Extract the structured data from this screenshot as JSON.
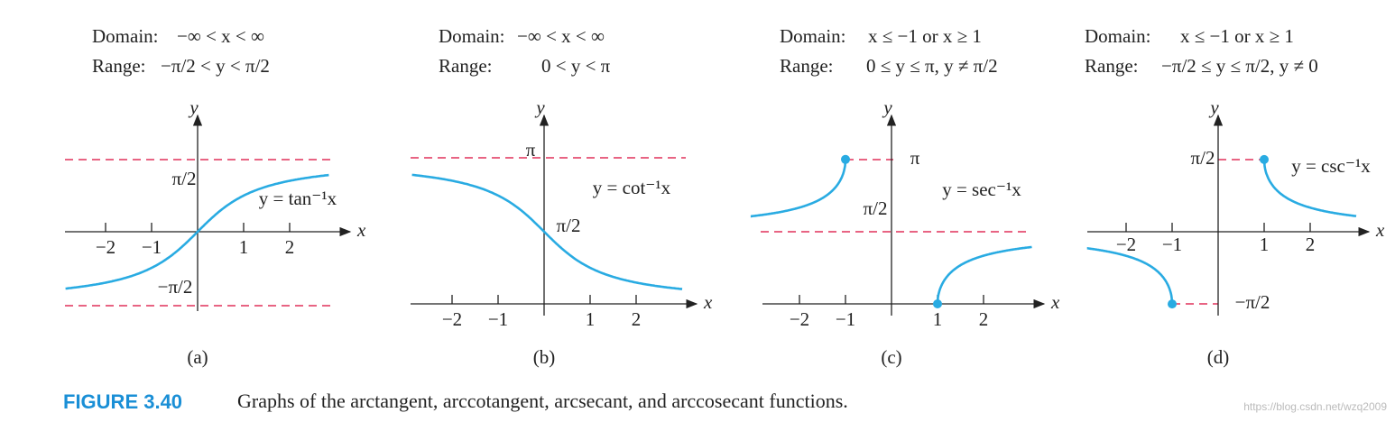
{
  "panels": [
    {
      "domain_label": "Domain:",
      "domain": "−∞ < x < ∞",
      "range_label": "Range:",
      "range": "−π/2 < y < π/2",
      "axis_x": "x",
      "axis_y": "y",
      "ticks": [
        "−2",
        "−1",
        "1",
        "2"
      ],
      "y_labels": [
        "π/2",
        "−π/2"
      ],
      "function": "y = tan⁻¹x",
      "label": "(a)"
    },
    {
      "domain_label": "Domain:",
      "domain": "−∞ < x < ∞",
      "range_label": "Range:",
      "range": "0 < y < π",
      "axis_x": "x",
      "axis_y": "y",
      "ticks": [
        "−2",
        "−1",
        "1",
        "2"
      ],
      "y_labels": [
        "π",
        "π/2"
      ],
      "function": "y = cot⁻¹x",
      "label": "(b)"
    },
    {
      "domain_label": "Domain:",
      "domain": "x ≤ −1 or x ≥ 1",
      "range_label": "Range:",
      "range": "0 ≤ y ≤ π, y ≠ π/2",
      "axis_x": "x",
      "axis_y": "y",
      "ticks": [
        "−2",
        "−1",
        "1",
        "2"
      ],
      "y_labels": [
        "π",
        "π/2"
      ],
      "function": "y = sec⁻¹x",
      "label": "(c)"
    },
    {
      "domain_label": "Domain:",
      "domain": "x ≤ −1 or x ≥ 1",
      "range_label": "Range:",
      "range": "−π/2 ≤ y ≤ π/2, y ≠ 0",
      "axis_x": "x",
      "axis_y": "y",
      "ticks": [
        "−2",
        "−1",
        "1",
        "2"
      ],
      "y_labels": [
        "π/2",
        "−π/2"
      ],
      "function": "y = csc⁻¹x",
      "label": "(d)"
    }
  ],
  "caption": {
    "number": "FIGURE 3.40",
    "text": "Graphs of the arctangent, arccotangent, arcsecant, and arccosecant functions."
  },
  "watermark": "https://blog.csdn.net/wzq2009"
}
